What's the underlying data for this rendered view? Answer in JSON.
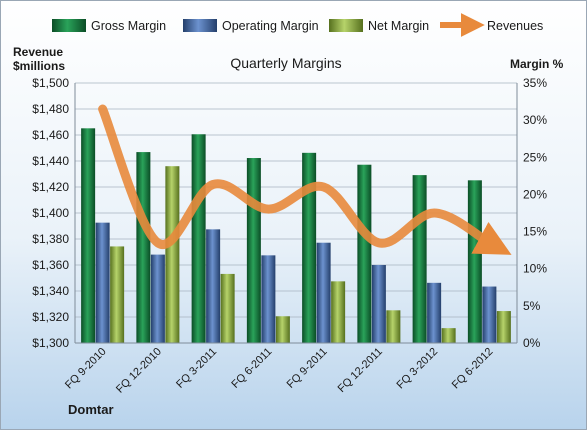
{
  "chart_data": {
    "type": "bar",
    "title": "Quarterly Margins",
    "categories": [
      "FQ 9-2010",
      "FQ 12-2010",
      "FQ 3-2011",
      "FQ 6-2011",
      "FQ 9-2011",
      "FQ 12-2011",
      "FQ 3-2012",
      "FQ 6-2012"
    ],
    "series": [
      {
        "name": "Gross Margin",
        "axis": "right",
        "color": "#1e8a4a",
        "values": [
          28.9,
          25.7,
          28.1,
          24.9,
          25.6,
          24.0,
          22.6,
          21.9
        ]
      },
      {
        "name": "Operating Margin",
        "axis": "right",
        "color": "#4a72b0",
        "values": [
          16.2,
          11.9,
          15.3,
          11.8,
          13.5,
          10.5,
          8.1,
          7.6
        ]
      },
      {
        "name": "Net Margin",
        "axis": "right",
        "color": "#9bb94f",
        "values": [
          13.0,
          23.8,
          9.3,
          3.6,
          8.3,
          4.4,
          2.0,
          4.3
        ]
      },
      {
        "name": "Revenues",
        "axis": "left",
        "type": "line",
        "color": "#e88a3c",
        "values": [
          1480,
          1377,
          1422,
          1403,
          1420,
          1377,
          1400,
          1377
        ]
      }
    ],
    "y_left": {
      "label_line1": "Revenue",
      "label_line2": "$millions",
      "lim": [
        1300,
        1500
      ],
      "ticks": [
        "$1,300",
        "$1,320",
        "$1,340",
        "$1,360",
        "$1,380",
        "$1,400",
        "$1,420",
        "$1,440",
        "$1,460",
        "$1,480",
        "$1,500"
      ]
    },
    "y_right": {
      "label": "Margin %",
      "lim": [
        0,
        35
      ],
      "ticks": [
        "0%",
        "5%",
        "10%",
        "15%",
        "20%",
        "25%",
        "30%",
        "35%"
      ]
    },
    "legend": {
      "position": "top",
      "entries": [
        "Gross Margin",
        "Operating Margin",
        "Net Margin",
        "Revenues"
      ]
    },
    "grid": true,
    "footer": "Domtar"
  }
}
